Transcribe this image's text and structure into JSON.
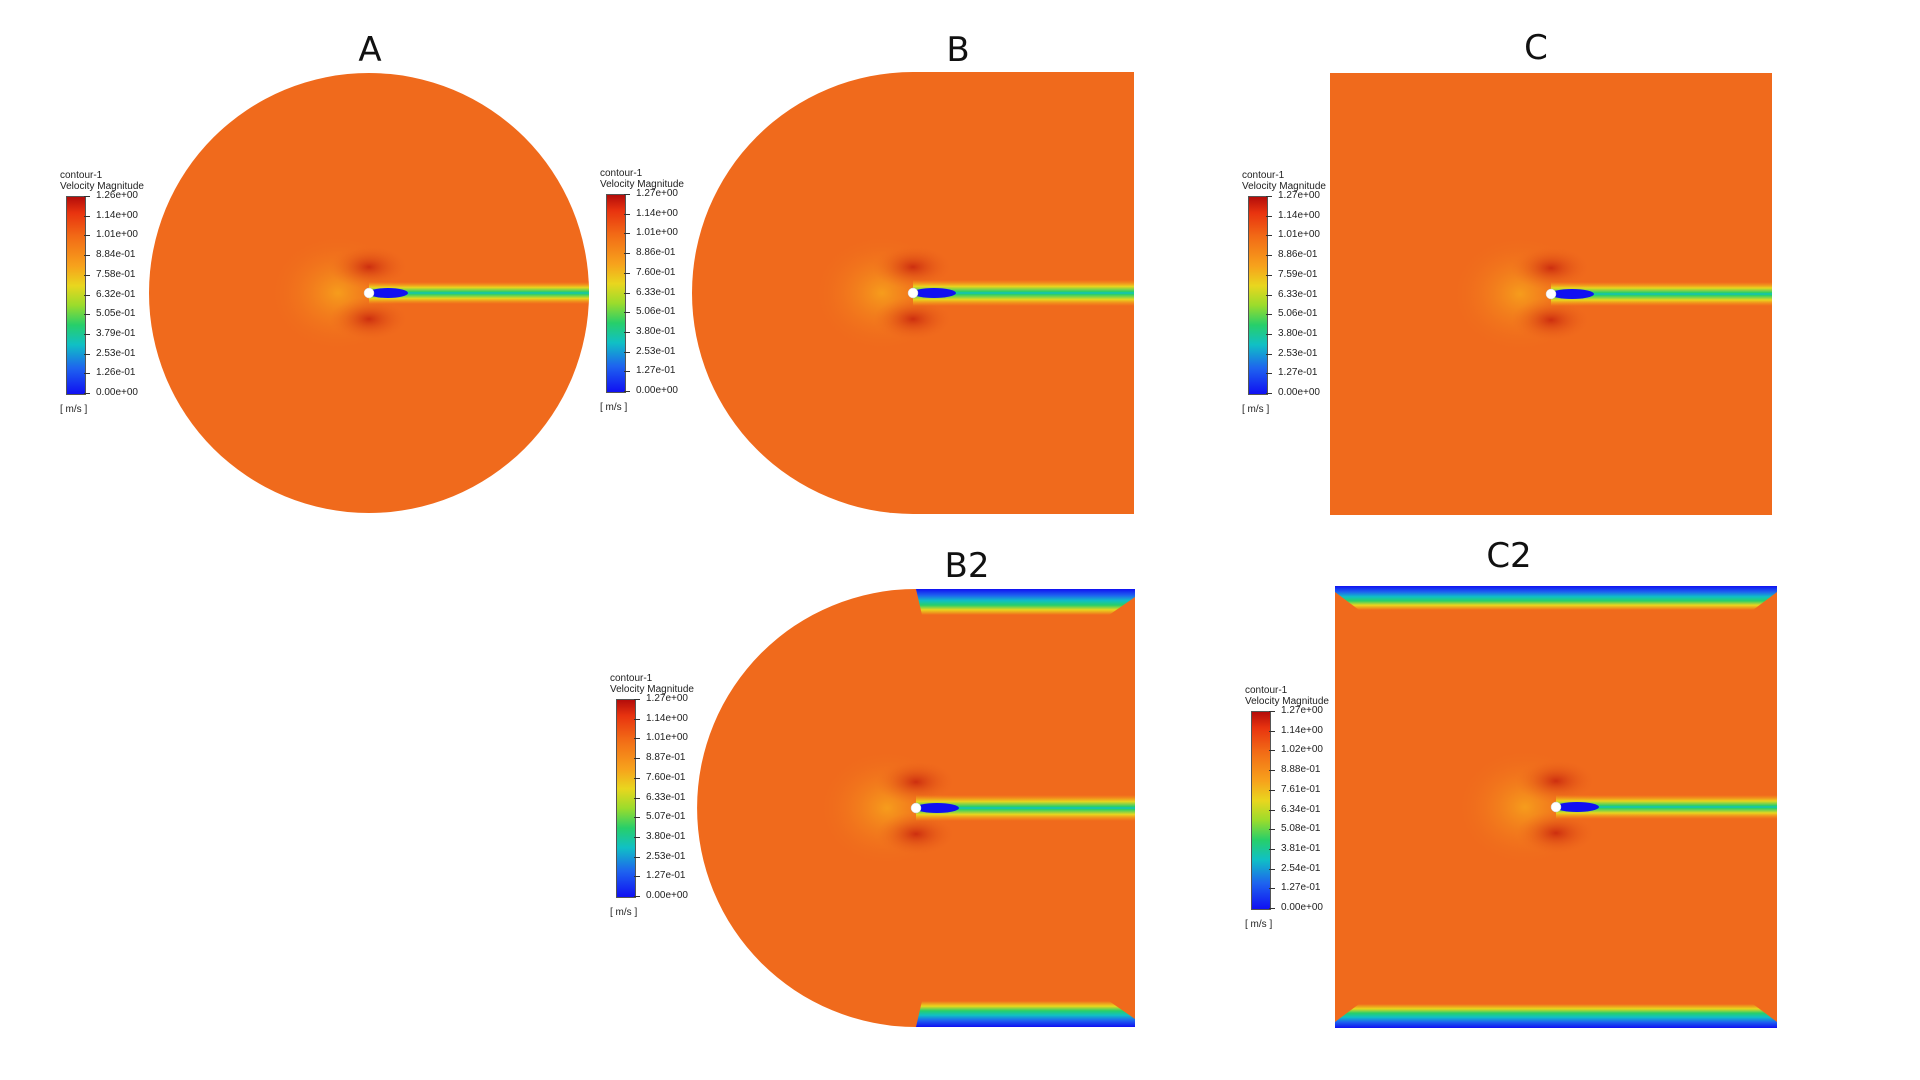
{
  "panels": {
    "a": {
      "title": "A"
    },
    "b": {
      "title": "B"
    },
    "c": {
      "title": "C"
    },
    "b2": {
      "title": "B2"
    },
    "c2": {
      "title": "C2"
    }
  },
  "legends": {
    "a": {
      "name": "contour-1",
      "variable": "Velocity Magnitude",
      "unit": "[ m/s ]",
      "ticks": [
        "1.26e+00",
        "1.14e+00",
        "1.01e+00",
        "8.84e-01",
        "7.58e-01",
        "6.32e-01",
        "5.05e-01",
        "3.79e-01",
        "2.53e-01",
        "1.26e-01",
        "0.00e+00"
      ]
    },
    "b": {
      "name": "contour-1",
      "variable": "Velocity Magnitude",
      "unit": "[ m/s ]",
      "ticks": [
        "1.27e+00",
        "1.14e+00",
        "1.01e+00",
        "8.86e-01",
        "7.60e-01",
        "6.33e-01",
        "5.06e-01",
        "3.80e-01",
        "2.53e-01",
        "1.27e-01",
        "0.00e+00"
      ]
    },
    "c": {
      "name": "contour-1",
      "variable": "Velocity Magnitude",
      "unit": "[ m/s ]",
      "ticks": [
        "1.27e+00",
        "1.14e+00",
        "1.01e+00",
        "8.86e-01",
        "7.59e-01",
        "6.33e-01",
        "5.06e-01",
        "3.80e-01",
        "2.53e-01",
        "1.27e-01",
        "0.00e+00"
      ]
    },
    "b2": {
      "name": "contour-1",
      "variable": "Velocity Magnitude",
      "unit": "[ m/s ]",
      "ticks": [
        "1.27e+00",
        "1.14e+00",
        "1.01e+00",
        "8.87e-01",
        "7.60e-01",
        "6.33e-01",
        "5.07e-01",
        "3.80e-01",
        "2.53e-01",
        "1.27e-01",
        "0.00e+00"
      ]
    },
    "c2": {
      "name": "contour-1",
      "variable": "Velocity Magnitude",
      "unit": "[ m/s ]",
      "ticks": [
        "1.27e+00",
        "1.14e+00",
        "1.02e+00",
        "8.88e-01",
        "7.61e-01",
        "6.34e-01",
        "5.08e-01",
        "3.81e-01",
        "2.54e-01",
        "1.27e-01",
        "0.00e+00"
      ]
    }
  },
  "colors": {
    "freestream": "#f06a1c",
    "high": "#b40d0a",
    "low": "#1010f2",
    "wake_mid": "#e9d61e",
    "wake_green": "#27cf6a"
  }
}
